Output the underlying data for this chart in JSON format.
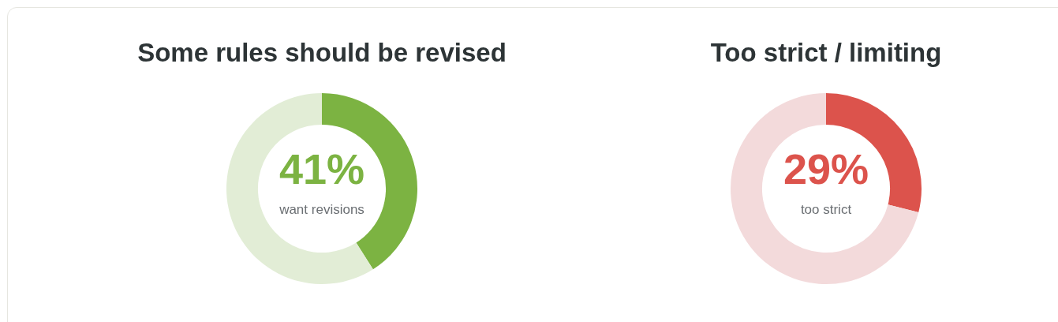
{
  "chart_data": [
    {
      "type": "donut",
      "title": "Some rules should be revised",
      "categories": [
        null,
        null
      ],
      "values": [
        41,
        59
      ],
      "colors": [
        "#7cb342",
        "#e2edd6"
      ],
      "value_labels": [
        "41%",
        null
      ],
      "annotations": [
        "want revisions"
      ],
      "legend": false
    },
    {
      "type": "donut",
      "title": "Too strict / limiting",
      "categories": [
        null,
        null
      ],
      "values": [
        29,
        71
      ],
      "colors": [
        "#dc534c",
        "#f3dadb"
      ],
      "value_labels": [
        "29%",
        null
      ],
      "annotations": [
        "too strict"
      ],
      "legend": false
    }
  ]
}
